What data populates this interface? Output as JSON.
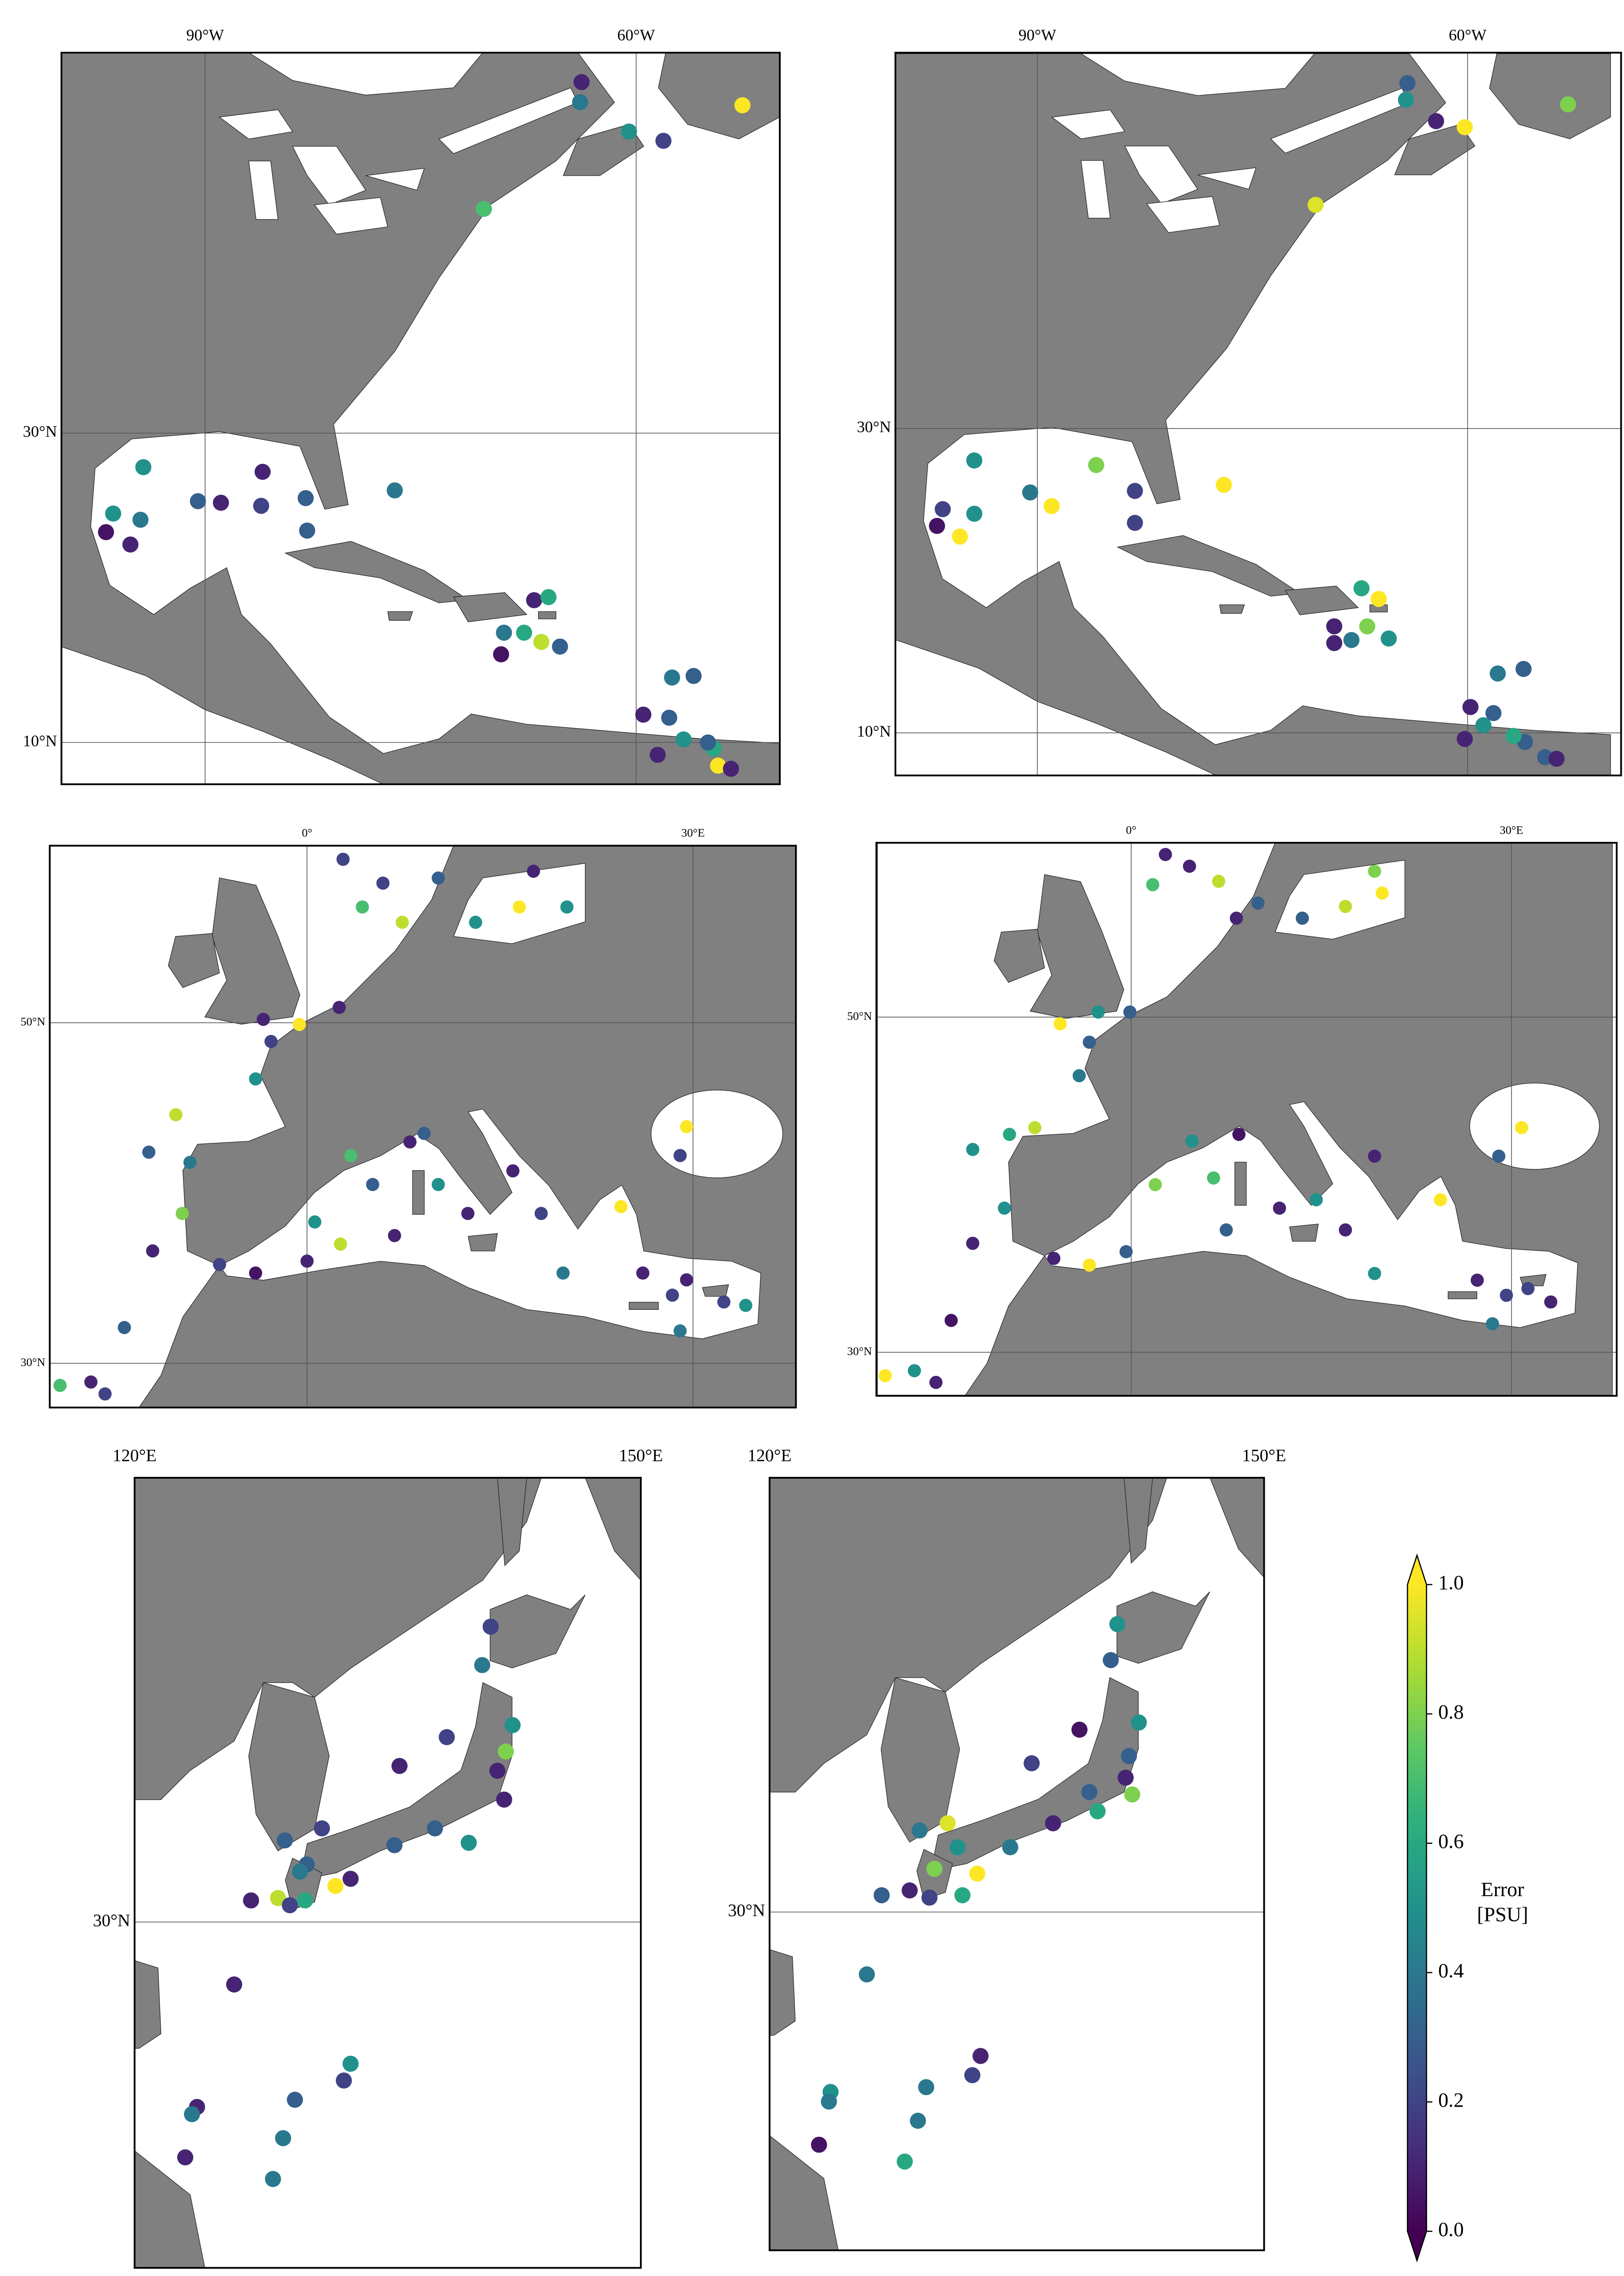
{
  "chart_data": [
    {
      "type": "scatter",
      "cmap": "viridis",
      "grid": true,
      "xlim": [
        -100,
        -50
      ],
      "ylim": [
        7.3,
        54.6
      ],
      "xticks": [
        {
          "value": -90,
          "label": "90°W"
        },
        {
          "value": -60,
          "label": "60°W"
        }
      ],
      "yticks": [
        {
          "value": 10,
          "label": "10°N"
        },
        {
          "value": 30,
          "label": "30°N"
        }
      ],
      "x": [
        -63.8,
        -63.9,
        -58.1,
        -60.5,
        -52.6,
        -70.6,
        -94.3,
        -96.4,
        -94.5,
        -96.9,
        -95.2,
        -90.5,
        -88.9,
        -86.0,
        -86.1,
        -83.0,
        -82.9,
        -76.8,
        -67.1,
        -66.1,
        -67.8,
        -66.6,
        -69.4,
        -65.3,
        -69.2,
        -57.5,
        -56.0,
        -59.5,
        -57.7,
        -56.7,
        -54.6,
        -54.3,
        -53.4,
        -58.5,
        -55.0
      ],
      "y": [
        52.7,
        51.4,
        48.9,
        49.5,
        51.2,
        44.5,
        27.8,
        24.8,
        24.4,
        23.6,
        22.8,
        25.6,
        25.5,
        27.5,
        25.3,
        25.8,
        23.7,
        26.3,
        19.2,
        19.4,
        17.1,
        16.5,
        15.7,
        16.2,
        17.1,
        14.2,
        14.3,
        11.8,
        11.6,
        10.2,
        9.6,
        8.5,
        8.3,
        9.2,
        10.0
      ],
      "values": [
        0.1,
        0.4,
        0.2,
        0.5,
        1.0,
        0.7,
        0.5,
        0.5,
        0.4,
        0.05,
        0.1,
        0.3,
        0.1,
        0.1,
        0.2,
        0.3,
        0.3,
        0.4,
        0.1,
        0.6,
        0.6,
        0.9,
        0.05,
        0.3,
        0.4,
        0.4,
        0.3,
        0.1,
        0.3,
        0.5,
        0.6,
        1.0,
        0.1,
        0.1,
        0.3
      ]
    },
    {
      "type": "scatter",
      "cmap": "viridis",
      "grid": true,
      "xlim": [
        -99.9,
        -49.3
      ],
      "ylim": [
        7.2,
        54.7
      ],
      "xticks": [
        {
          "value": -90,
          "label": "90°W"
        },
        {
          "value": -60,
          "label": "60°W"
        }
      ],
      "yticks": [
        {
          "value": 10,
          "label": "10°N"
        },
        {
          "value": 30,
          "label": "30°N"
        }
      ],
      "x": [
        -64.2,
        -64.3,
        -62.2,
        -60.2,
        -53.0,
        -70.6,
        -94.4,
        -96.6,
        -94.4,
        -97.0,
        -95.4,
        -90.5,
        -89.0,
        -85.9,
        -83.2,
        -83.2,
        -77.0,
        -67.4,
        -66.2,
        -69.3,
        -67.0,
        -65.5,
        -69.3,
        -68.1,
        -57.9,
        -56.1,
        -59.8,
        -58.2,
        -58.9,
        -56.0,
        -54.6,
        -53.8,
        -56.8,
        -60.2
      ],
      "y": [
        52.7,
        51.6,
        50.2,
        49.8,
        51.3,
        44.7,
        27.9,
        24.7,
        24.4,
        23.6,
        22.9,
        25.8,
        24.9,
        27.6,
        25.9,
        23.8,
        26.3,
        19.5,
        18.8,
        17.0,
        17.0,
        16.2,
        15.9,
        16.1,
        13.9,
        14.2,
        11.7,
        11.3,
        10.5,
        9.4,
        8.4,
        8.3,
        9.8,
        9.6
      ],
      "values": [
        0.3,
        0.5,
        0.1,
        1.0,
        0.8,
        0.95,
        0.5,
        0.2,
        0.5,
        0.05,
        1.0,
        0.4,
        1.0,
        0.8,
        0.2,
        0.2,
        1.0,
        0.6,
        1.0,
        0.1,
        0.8,
        0.5,
        0.1,
        0.4,
        0.4,
        0.3,
        0.1,
        0.3,
        0.5,
        0.3,
        0.3,
        0.1,
        0.6,
        0.1
      ]
    },
    {
      "type": "scatter",
      "cmap": "viridis",
      "grid": true,
      "xlim": [
        -20,
        38
      ],
      "ylim": [
        27.4,
        60.4
      ],
      "xticks": [
        {
          "value": 0,
          "label": "0°"
        },
        {
          "value": 30,
          "label": "30°E"
        }
      ],
      "yticks": [
        {
          "value": 30,
          "label": "30°N"
        },
        {
          "value": 50,
          "label": "50°N"
        }
      ],
      "x": [
        2.8,
        4.3,
        5.9,
        7.4,
        10.2,
        13.1,
        16.5,
        17.6,
        20.2,
        -3.4,
        -0.6,
        2.5,
        -2.8,
        -4.0,
        -10.2,
        -12.3,
        -9.1,
        -9.7,
        -12.0,
        -19.2,
        -16.8,
        -15.7,
        -14.2,
        -6.8,
        -4.0,
        0.0,
        0.6,
        3.4,
        5.1,
        6.8,
        8.0,
        9.1,
        10.2,
        12.5,
        16.0,
        18.2,
        19.9,
        24.4,
        26.1,
        28.4,
        29.5,
        32.4,
        34.1,
        29.0,
        29.5,
        29.0,
        2.6
      ],
      "y": [
        59.6,
        56.8,
        58.2,
        55.9,
        58.5,
        55.9,
        56.8,
        58.9,
        56.8,
        50.2,
        49.9,
        50.9,
        48.9,
        46.7,
        44.6,
        42.4,
        41.8,
        38.8,
        36.6,
        28.7,
        28.9,
        28.2,
        32.1,
        35.8,
        35.3,
        36.0,
        38.3,
        42.2,
        40.5,
        37.5,
        43.0,
        43.5,
        40.5,
        38.8,
        41.3,
        38.8,
        35.3,
        39.2,
        35.3,
        34.0,
        34.9,
        33.6,
        33.4,
        31.9,
        43.9,
        42.2,
        37.0
      ],
      "values": [
        0.2,
        0.7,
        0.2,
        0.9,
        0.3,
        0.5,
        1.0,
        0.1,
        0.5,
        0.1,
        1.0,
        0.1,
        0.2,
        0.5,
        0.9,
        0.3,
        0.4,
        0.8,
        0.1,
        0.7,
        0.1,
        0.2,
        0.3,
        0.2,
        0.05,
        0.1,
        0.5,
        0.7,
        0.3,
        0.1,
        0.1,
        0.3,
        0.5,
        0.1,
        0.1,
        0.2,
        0.4,
        1.0,
        0.1,
        0.2,
        0.1,
        0.2,
        0.5,
        0.4,
        1.0,
        0.2,
        0.9
      ]
    },
    {
      "type": "scatter",
      "cmap": "viridis",
      "grid": true,
      "xlim": [
        -20.1,
        38.3
      ],
      "ylim": [
        27.4,
        60.4
      ],
      "xticks": [
        {
          "value": 0,
          "label": "0°"
        },
        {
          "value": 30,
          "label": "30°E"
        }
      ],
      "yticks": [
        {
          "value": 30,
          "label": "30°N"
        },
        {
          "value": 50,
          "label": "50°N"
        }
      ],
      "x": [
        2.7,
        1.7,
        4.6,
        6.9,
        8.3,
        10.0,
        13.5,
        16.9,
        19.2,
        19.8,
        -2.6,
        -5.6,
        -0.1,
        -3.3,
        -4.1,
        -7.6,
        -9.6,
        -12.5,
        -10.0,
        -12.5,
        -14.2,
        -19.4,
        -17.1,
        -15.4,
        -6.1,
        -3.3,
        -0.4,
        1.9,
        4.8,
        6.5,
        8.5,
        7.5,
        11.7,
        14.6,
        16.9,
        19.2,
        24.4,
        27.3,
        29.6,
        31.3,
        33.1,
        28.5,
        30.8,
        29.0,
        19.2
      ],
      "y": [
        59.7,
        57.9,
        59.0,
        58.1,
        55.9,
        56.8,
        55.9,
        56.6,
        58.7,
        57.4,
        50.3,
        49.6,
        50.3,
        48.5,
        46.5,
        43.4,
        43.0,
        42.1,
        38.6,
        36.5,
        31.9,
        28.6,
        28.9,
        28.2,
        35.6,
        35.2,
        36.0,
        40.0,
        42.6,
        40.4,
        43.0,
        37.3,
        38.6,
        39.1,
        37.3,
        34.7,
        39.1,
        34.3,
        33.4,
        33.8,
        33.0,
        31.7,
        43.4,
        41.7,
        41.7
      ],
      "values": [
        0.1,
        0.7,
        0.1,
        0.9,
        0.1,
        0.3,
        0.3,
        0.9,
        0.8,
        1.0,
        0.5,
        1.0,
        0.3,
        0.3,
        0.4,
        0.9,
        0.6,
        0.5,
        0.5,
        0.1,
        0.05,
        1.0,
        0.5,
        0.1,
        0.1,
        1.0,
        0.3,
        0.8,
        0.5,
        0.7,
        0.05,
        0.3,
        0.1,
        0.5,
        0.1,
        0.5,
        1.0,
        0.1,
        0.2,
        0.2,
        0.1,
        0.4,
        1.0,
        0.3,
        0.1
      ]
    },
    {
      "type": "scatter",
      "cmap": "viridis",
      "grid": true,
      "xlim": [
        120,
        150
      ],
      "ylim": [
        15.6,
        48.5
      ],
      "xticks": [
        {
          "value": 120,
          "label": "120°E"
        },
        {
          "value": 150,
          "label": "150°E"
        }
      ],
      "yticks": [
        {
          "value": 30,
          "label": "30°N"
        }
      ],
      "x": [
        141.1,
        140.6,
        142.4,
        142.0,
        141.5,
        141.9,
        138.5,
        135.7,
        137.8,
        139.8,
        135.4,
        132.8,
        131.9,
        130.2,
        128.9,
        131.1,
        129.8,
        128.5,
        126.9,
        129.2,
        130.1,
        125.9,
        132.8,
        132.4,
        129.5,
        123.7,
        123.4,
        128.8,
        123.0,
        128.2
      ],
      "y": [
        42.3,
        40.7,
        38.2,
        37.1,
        36.3,
        35.1,
        37.7,
        36.5,
        33.9,
        33.3,
        33.2,
        31.8,
        31.5,
        32.4,
        33.4,
        33.9,
        32.1,
        31.0,
        30.9,
        30.7,
        30.9,
        27.4,
        24.1,
        23.4,
        22.6,
        22.3,
        22.0,
        21.0,
        20.2,
        19.3
      ],
      "values": [
        0.2,
        0.4,
        0.5,
        0.8,
        0.1,
        0.1,
        0.2,
        0.1,
        0.3,
        0.5,
        0.3,
        0.1,
        1.0,
        0.3,
        0.3,
        0.2,
        0.4,
        0.9,
        0.1,
        0.2,
        0.6,
        0.1,
        0.5,
        0.2,
        0.3,
        0.1,
        0.4,
        0.4,
        0.1,
        0.4
      ]
    },
    {
      "type": "scatter",
      "cmap": "viridis",
      "grid": true,
      "xlim": [
        120,
        150
      ],
      "ylim": [
        15.9,
        48.1
      ],
      "xticks": [
        {
          "value": 120,
          "label": "120°E"
        },
        {
          "value": 150,
          "label": "150°E"
        }
      ],
      "yticks": [
        {
          "value": 30,
          "label": "30°N"
        }
      ],
      "x": [
        141.1,
        140.7,
        142.4,
        141.8,
        141.6,
        142.0,
        138.8,
        135.9,
        139.9,
        139.4,
        137.2,
        134.6,
        132.6,
        131.4,
        130.8,
        129.1,
        130.0,
        128.5,
        126.8,
        131.7,
        129.7,
        125.9,
        132.8,
        132.3,
        129.5,
        123.7,
        123.6,
        129.0,
        123.0,
        128.2
      ],
      "y": [
        42.0,
        40.5,
        37.9,
        36.5,
        35.6,
        34.9,
        37.6,
        36.2,
        34.2,
        35.0,
        33.7,
        32.7,
        31.6,
        32.7,
        33.7,
        33.4,
        31.8,
        30.9,
        30.7,
        30.7,
        30.6,
        27.4,
        24.0,
        23.2,
        22.7,
        22.5,
        22.1,
        21.3,
        20.3,
        19.6
      ],
      "values": [
        0.5,
        0.3,
        0.5,
        0.3,
        0.1,
        0.8,
        0.05,
        0.2,
        0.6,
        0.3,
        0.1,
        0.4,
        1.0,
        0.5,
        0.95,
        0.4,
        0.8,
        0.1,
        0.3,
        0.6,
        0.2,
        0.4,
        0.1,
        0.2,
        0.4,
        0.5,
        0.4,
        0.4,
        0.05,
        0.6
      ]
    }
  ],
  "colorbar": {
    "label": "Error [PSU]",
    "cmap": "viridis",
    "extend": "both",
    "lim": [
      0,
      1
    ],
    "ticks": [
      {
        "value": 0,
        "label": "0.0"
      },
      {
        "value": 0.2,
        "label": "0.2"
      },
      {
        "value": 0.4,
        "label": "0.4"
      },
      {
        "value": 0.6,
        "label": "0.6"
      },
      {
        "value": 0.8,
        "label": "0.8"
      },
      {
        "value": 1,
        "label": "1.0"
      }
    ]
  }
}
